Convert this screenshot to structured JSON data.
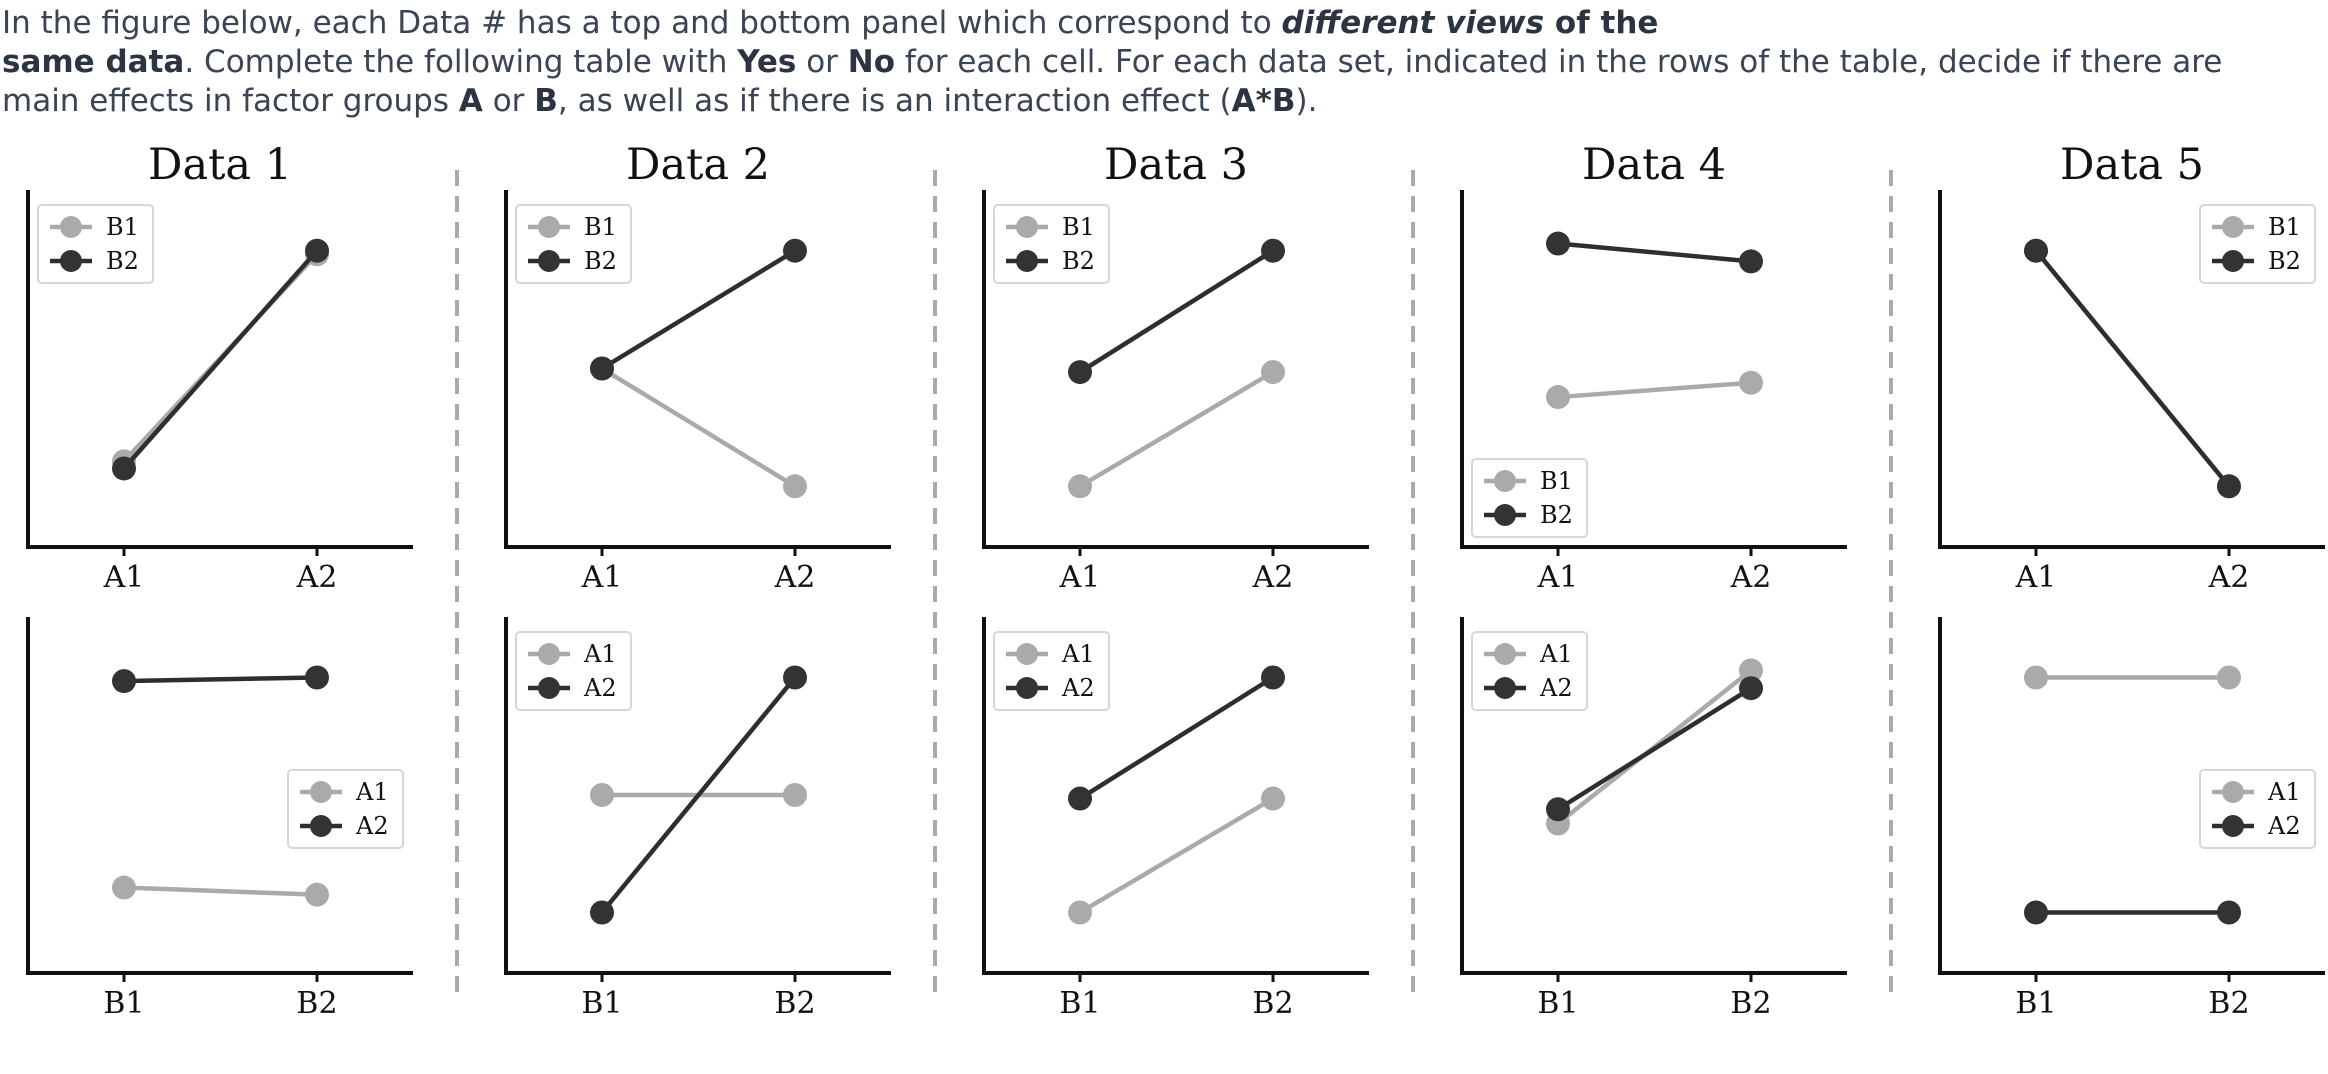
{
  "instructions": {
    "t1": "In the figure below, each Data # has a top and bottom panel which correspond to ",
    "b1": "different views",
    "b2": " of the",
    "b3": "same data",
    "t2": ". Complete the following table with ",
    "b4": "Yes",
    "t3": " or ",
    "b5": "No",
    "t4": " for each cell. For each data set, indicated in the rows of the table, decide if there are main effects in factor groups ",
    "b6": "A",
    "t5": " or ",
    "b7": "B",
    "t6": ", as well as if there is an interaction effect (",
    "b8": "A*B",
    "t7": ")."
  },
  "colors": {
    "light": "#aaaaaa",
    "dark": "#2e2e2e",
    "dark_marker": "#333333"
  },
  "chart_data": [
    {
      "type": "line",
      "title": "Data 1",
      "top": {
        "categories": [
          "A1",
          "A2"
        ],
        "ylim": [
          0,
          10
        ],
        "legend_placement": "top-left",
        "series": [
          {
            "name": "B1",
            "color": "light",
            "values": [
              2.4,
              8.2
            ]
          },
          {
            "name": "B2",
            "color": "dark",
            "values": [
              2.2,
              8.3
            ]
          }
        ]
      },
      "bottom": {
        "categories": [
          "B1",
          "B2"
        ],
        "ylim": [
          0,
          10
        ],
        "legend_placement": "center-right",
        "series": [
          {
            "name": "A1",
            "color": "light",
            "values": [
              2.4,
              2.2
            ]
          },
          {
            "name": "A2",
            "color": "dark",
            "values": [
              8.2,
              8.3
            ]
          }
        ]
      }
    },
    {
      "type": "line",
      "title": "Data 2",
      "top": {
        "categories": [
          "A1",
          "A2"
        ],
        "ylim": [
          0,
          10
        ],
        "legend_placement": "top-left",
        "series": [
          {
            "name": "B1",
            "color": "light",
            "values": [
              5.0,
              1.7
            ]
          },
          {
            "name": "B2",
            "color": "dark",
            "values": [
              5.0,
              8.3
            ]
          }
        ]
      },
      "bottom": {
        "categories": [
          "B1",
          "B2"
        ],
        "ylim": [
          0,
          10
        ],
        "legend_placement": "top-left",
        "series": [
          {
            "name": "A1",
            "color": "light",
            "values": [
              5.0,
              5.0
            ]
          },
          {
            "name": "A2",
            "color": "dark",
            "values": [
              1.7,
              8.3
            ]
          }
        ]
      }
    },
    {
      "type": "line",
      "title": "Data 3",
      "top": {
        "categories": [
          "A1",
          "A2"
        ],
        "ylim": [
          0,
          10
        ],
        "legend_placement": "top-left",
        "series": [
          {
            "name": "B1",
            "color": "light",
            "values": [
              1.7,
              4.9
            ]
          },
          {
            "name": "B2",
            "color": "dark",
            "values": [
              4.9,
              8.3
            ]
          }
        ]
      },
      "bottom": {
        "categories": [
          "B1",
          "B2"
        ],
        "ylim": [
          0,
          10
        ],
        "legend_placement": "top-left",
        "series": [
          {
            "name": "A1",
            "color": "light",
            "values": [
              1.7,
              4.9
            ]
          },
          {
            "name": "A2",
            "color": "dark",
            "values": [
              4.9,
              8.3
            ]
          }
        ]
      }
    },
    {
      "type": "line",
      "title": "Data 4",
      "top": {
        "categories": [
          "A1",
          "A2"
        ],
        "ylim": [
          0,
          10
        ],
        "legend_placement": "bottom-left",
        "series": [
          {
            "name": "B1",
            "color": "light",
            "values": [
              4.2,
              4.6
            ]
          },
          {
            "name": "B2",
            "color": "dark",
            "values": [
              8.5,
              8.0
            ]
          }
        ]
      },
      "bottom": {
        "categories": [
          "B1",
          "B2"
        ],
        "ylim": [
          0,
          10
        ],
        "legend_placement": "top-left",
        "series": [
          {
            "name": "A1",
            "color": "light",
            "values": [
              4.2,
              8.5
            ]
          },
          {
            "name": "A2",
            "color": "dark",
            "values": [
              4.6,
              8.0
            ]
          }
        ]
      }
    },
    {
      "type": "line",
      "title": "Data 5",
      "top": {
        "categories": [
          "A1",
          "A2"
        ],
        "ylim": [
          0,
          10
        ],
        "legend_placement": "top-right",
        "series": [
          {
            "name": "B1",
            "color": "light",
            "values": [
              8.3,
              1.7
            ]
          },
          {
            "name": "B2",
            "color": "dark",
            "values": [
              8.3,
              1.7
            ]
          }
        ]
      },
      "bottom": {
        "categories": [
          "B1",
          "B2"
        ],
        "ylim": [
          0,
          10
        ],
        "legend_placement": "center-right",
        "series": [
          {
            "name": "A1",
            "color": "light",
            "values": [
              8.3,
              8.3
            ]
          },
          {
            "name": "A2",
            "color": "dark",
            "values": [
              1.7,
              1.7
            ]
          }
        ]
      }
    }
  ]
}
